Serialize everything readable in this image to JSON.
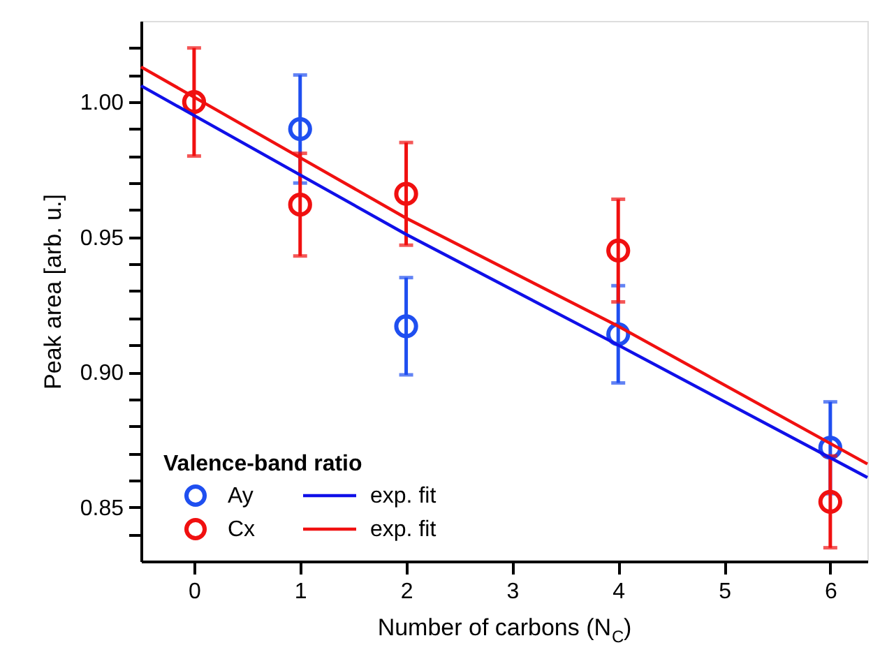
{
  "chart_data": {
    "type": "scatter",
    "xlabel": "Number of carbons (N$_{C}$)",
    "ylabel": "Peak area [arb. u.]",
    "legend_title": "Valence-band ratio",
    "x": [
      0,
      1,
      2,
      4,
      6
    ],
    "series": [
      {
        "name": "Ay",
        "color": "#1f4ff0",
        "marker": "circle",
        "values": [
          null,
          0.99,
          0.917,
          0.914,
          0.872
        ],
        "errors": [
          null,
          0.02,
          0.018,
          0.018,
          0.017
        ]
      },
      {
        "name": "Cx",
        "color": "#f01010",
        "marker": "circle",
        "values": [
          1.0,
          0.962,
          0.966,
          0.945,
          0.852
        ],
        "errors": [
          0.02,
          0.019,
          0.019,
          0.019,
          0.017
        ]
      },
      {
        "name": "exp. fit",
        "color": "#1010e8",
        "type": "line",
        "marker": "none",
        "x": [
          -0.5,
          2,
          4,
          6.35
        ],
        "values": [
          1.006,
          0.951,
          0.91,
          0.861
        ]
      },
      {
        "name": "exp. fit",
        "color": "#f01010",
        "type": "line",
        "marker": "none",
        "x": [
          -0.5,
          2,
          4,
          6.35
        ],
        "values": [
          1.013,
          0.957,
          0.917,
          0.866
        ]
      }
    ],
    "xlim": [
      -0.5,
      6.35
    ],
    "xticks": [
      0,
      1,
      2,
      3,
      4,
      5,
      6
    ],
    "ylim": [
      0.83,
      1.03
    ],
    "yticks": [
      {
        "value": 0.84,
        "label": null
      },
      0.85,
      {
        "value": 0.86,
        "label": null
      },
      {
        "value": 0.87,
        "label": null
      },
      {
        "value": 0.88,
        "label": null
      },
      {
        "value": 0.89,
        "label": null
      },
      {
        "value": 0.9,
        "label": "0.90"
      },
      {
        "value": 0.91,
        "label": null
      },
      {
        "value": 0.92,
        "label": null
      },
      {
        "value": 0.93,
        "label": null
      },
      {
        "value": 0.94,
        "label": null
      },
      0.95,
      {
        "value": 0.96,
        "label": null
      },
      {
        "value": 0.97,
        "label": null
      },
      {
        "value": 0.98,
        "label": null
      },
      {
        "value": 0.99,
        "label": null
      },
      {
        "value": 1.0,
        "label": "1.00"
      },
      {
        "value": 1.01,
        "label": null
      },
      {
        "value": 1.02,
        "label": null
      }
    ],
    "grid": false,
    "legend": "bottom left"
  }
}
